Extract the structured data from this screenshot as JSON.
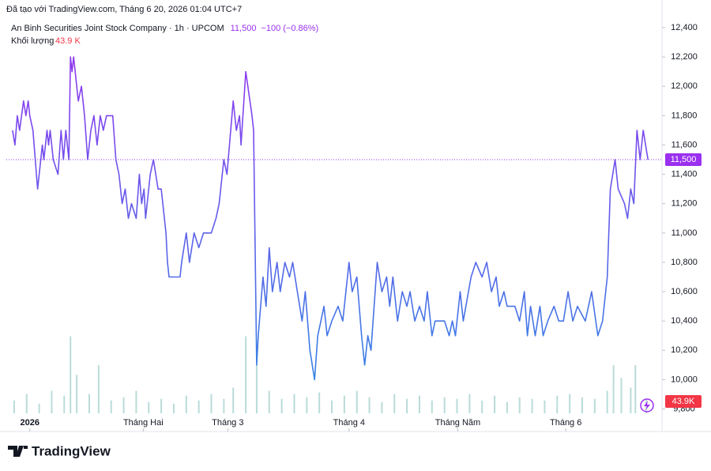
{
  "chart_data": {
    "type": "line",
    "created": "Đã tạo với TradingView.com, Tháng 6 20, 2026 01:04 UTC+7",
    "title": "An Binh Securities Joint Stock Company · 1h · UPCOM",
    "last_price": {
      "value": 11500,
      "label": "11,500"
    },
    "change": "−100 (−0.86%)",
    "volume_title": "Khối lượng",
    "volume_header": "43.9 K",
    "brand": "TradingView",
    "ylim": [
      9760,
      12470
    ],
    "yticks": [
      {
        "value": 9800,
        "label": "9,800"
      },
      {
        "value": 10000,
        "label": "10,000"
      },
      {
        "value": 10200,
        "label": "10,200"
      },
      {
        "value": 10400,
        "label": "10,400"
      },
      {
        "value": 10600,
        "label": "10,600"
      },
      {
        "value": 10800,
        "label": "10,800"
      },
      {
        "value": 11000,
        "label": "11,000"
      },
      {
        "value": 11200,
        "label": "11,200"
      },
      {
        "value": 11400,
        "label": "11,400"
      },
      {
        "value": 11600,
        "label": "11,600"
      },
      {
        "value": 11800,
        "label": "11,800"
      },
      {
        "value": 12000,
        "label": "12,000"
      },
      {
        "value": 12200,
        "label": "12,200"
      },
      {
        "value": 12400,
        "label": "12,400"
      }
    ],
    "xlim": [
      0,
      838
    ],
    "xticks": [
      {
        "value": 30,
        "label": "2026"
      },
      {
        "value": 175,
        "label": "Tháng Hai"
      },
      {
        "value": 283,
        "label": "Tháng 3"
      },
      {
        "value": 438,
        "label": "Tháng 4"
      },
      {
        "value": 577,
        "label": "Tháng Năm"
      },
      {
        "value": 715,
        "label": "Tháng 6"
      }
    ],
    "series": [
      {
        "gradient": [
          "#9b30f0",
          "#2c8be3"
        ],
        "x": [
          8,
          11,
          14,
          17,
          22,
          25,
          28,
          30,
          34,
          40,
          44,
          46,
          48,
          52,
          54,
          56,
          60,
          66,
          70,
          73,
          76,
          80,
          82,
          84,
          86,
          92,
          96,
          100,
          104,
          108,
          112,
          116,
          120,
          124,
          128,
          136,
          140,
          144,
          148,
          152,
          156,
          160,
          166,
          170,
          173,
          176,
          178,
          184,
          188,
          194,
          198,
          204,
          206,
          208,
          222,
          224,
          230,
          234,
          240,
          246,
          252,
          262,
          268,
          272,
          278,
          282,
          290,
          294,
          298,
          300,
          306,
          314,
          316,
          320,
          322,
          328,
          332,
          336,
          340,
          346,
          350,
          356,
          362,
          366,
          372,
          378,
          382,
          388,
          394,
          398,
          402,
          406,
          410,
          416,
          424,
          430,
          438,
          442,
          448,
          454,
          458,
          462,
          466,
          474,
          480,
          486,
          490,
          494,
          500,
          506,
          512,
          516,
          522,
          528,
          534,
          538,
          544,
          548,
          560,
          566,
          570,
          574,
          580,
          584,
          594,
          600,
          608,
          614,
          620,
          626,
          630,
          636,
          640,
          650,
          656,
          662,
          666,
          670,
          676,
          682,
          686,
          692,
          700,
          706,
          712,
          718,
          724,
          730,
          740,
          748,
          756,
          762,
          768,
          772,
          778,
          782,
          790,
          794,
          798,
          802,
          806,
          810,
          814,
          820
        ],
        "values": [
          11700,
          11600,
          11800,
          11700,
          11900,
          11800,
          11900,
          11800,
          11700,
          11300,
          11500,
          11600,
          11500,
          11700,
          11600,
          11700,
          11500,
          11400,
          11700,
          11500,
          11700,
          11500,
          12200,
          12100,
          12200,
          11900,
          12000,
          11800,
          11500,
          11700,
          11800,
          11600,
          11800,
          11700,
          11800,
          11800,
          11500,
          11400,
          11200,
          11300,
          11100,
          11200,
          11100,
          11400,
          11200,
          11300,
          11100,
          11400,
          11500,
          11300,
          11300,
          11000,
          10800,
          10700,
          10700,
          10800,
          11000,
          10800,
          11000,
          10900,
          11000,
          11000,
          11100,
          11200,
          11500,
          11400,
          11900,
          11700,
          11800,
          11600,
          12100,
          11800,
          11700,
          10100,
          10300,
          10700,
          10500,
          10900,
          10600,
          10800,
          10600,
          10800,
          10700,
          10800,
          10600,
          10400,
          10600,
          10200,
          10000,
          10300,
          10400,
          10500,
          10300,
          10400,
          10500,
          10400,
          10800,
          10600,
          10700,
          10300,
          10100,
          10300,
          10200,
          10800,
          10600,
          10700,
          10500,
          10700,
          10400,
          10600,
          10500,
          10600,
          10400,
          10500,
          10400,
          10600,
          10300,
          10400,
          10400,
          10300,
          10400,
          10300,
          10600,
          10400,
          10700,
          10800,
          10700,
          10800,
          10600,
          10700,
          10500,
          10600,
          10500,
          10500,
          10400,
          10600,
          10300,
          10500,
          10300,
          10500,
          10300,
          10400,
          10500,
          10400,
          10400,
          10600,
          10400,
          10500,
          10400,
          10600,
          10300,
          10400,
          10700,
          11300,
          11500,
          11300,
          11200,
          11100,
          11300,
          11200,
          11700,
          11500,
          11700,
          11500
        ]
      }
    ],
    "volume": {
      "color": "#b9dcd8",
      "vlim": [
        0,
        320
      ],
      "last": {
        "value": 43.9,
        "label": "43.9K"
      },
      "x": [
        10,
        26,
        42,
        58,
        74,
        82,
        90,
        106,
        118,
        134,
        150,
        166,
        182,
        198,
        214,
        230,
        246,
        262,
        278,
        290,
        306,
        320,
        336,
        352,
        368,
        384,
        400,
        416,
        432,
        448,
        464,
        480,
        496,
        512,
        528,
        544,
        560,
        576,
        592,
        608,
        624,
        640,
        656,
        672,
        688,
        704,
        720,
        736,
        752,
        768,
        776,
        786,
        798,
        804,
        818
      ],
      "values": [
        40,
        60,
        30,
        70,
        55,
        240,
        120,
        60,
        150,
        40,
        50,
        70,
        35,
        45,
        30,
        55,
        40,
        60,
        45,
        80,
        240,
        150,
        70,
        45,
        60,
        50,
        65,
        40,
        55,
        70,
        50,
        35,
        60,
        45,
        55,
        40,
        50,
        45,
        60,
        40,
        55,
        35,
        50,
        45,
        40,
        55,
        60,
        50,
        45,
        70,
        150,
        110,
        80,
        150,
        43.9
      ]
    }
  }
}
